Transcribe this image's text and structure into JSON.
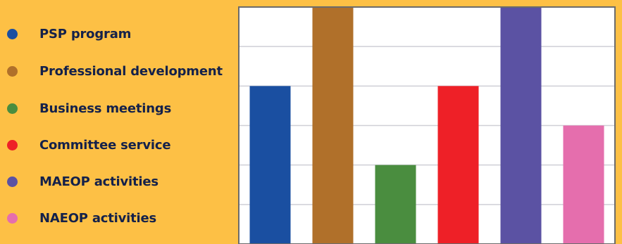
{
  "chart_data": {
    "type": "bar",
    "categories": [
      "PSP program",
      "Professional development",
      "Business meetings",
      "Committee service",
      "MAEOP activities",
      "NAEOP activities"
    ],
    "values": [
      4,
      6,
      2,
      4,
      6,
      3
    ],
    "colors": [
      "#1A4FA1",
      "#B0702A",
      "#4A8D3F",
      "#EE2027",
      "#5B52A3",
      "#E56EAD"
    ],
    "ylim": [
      0,
      6
    ],
    "grid": true,
    "legend_placement": "left",
    "title": "",
    "xlabel": "",
    "ylabel": ""
  },
  "colors": {
    "background": "#FDC045",
    "plot_background": "#FFFFFF",
    "gridline": "#CFCFD6",
    "border": "#6B6B6B",
    "legend_text": "#14214A"
  }
}
